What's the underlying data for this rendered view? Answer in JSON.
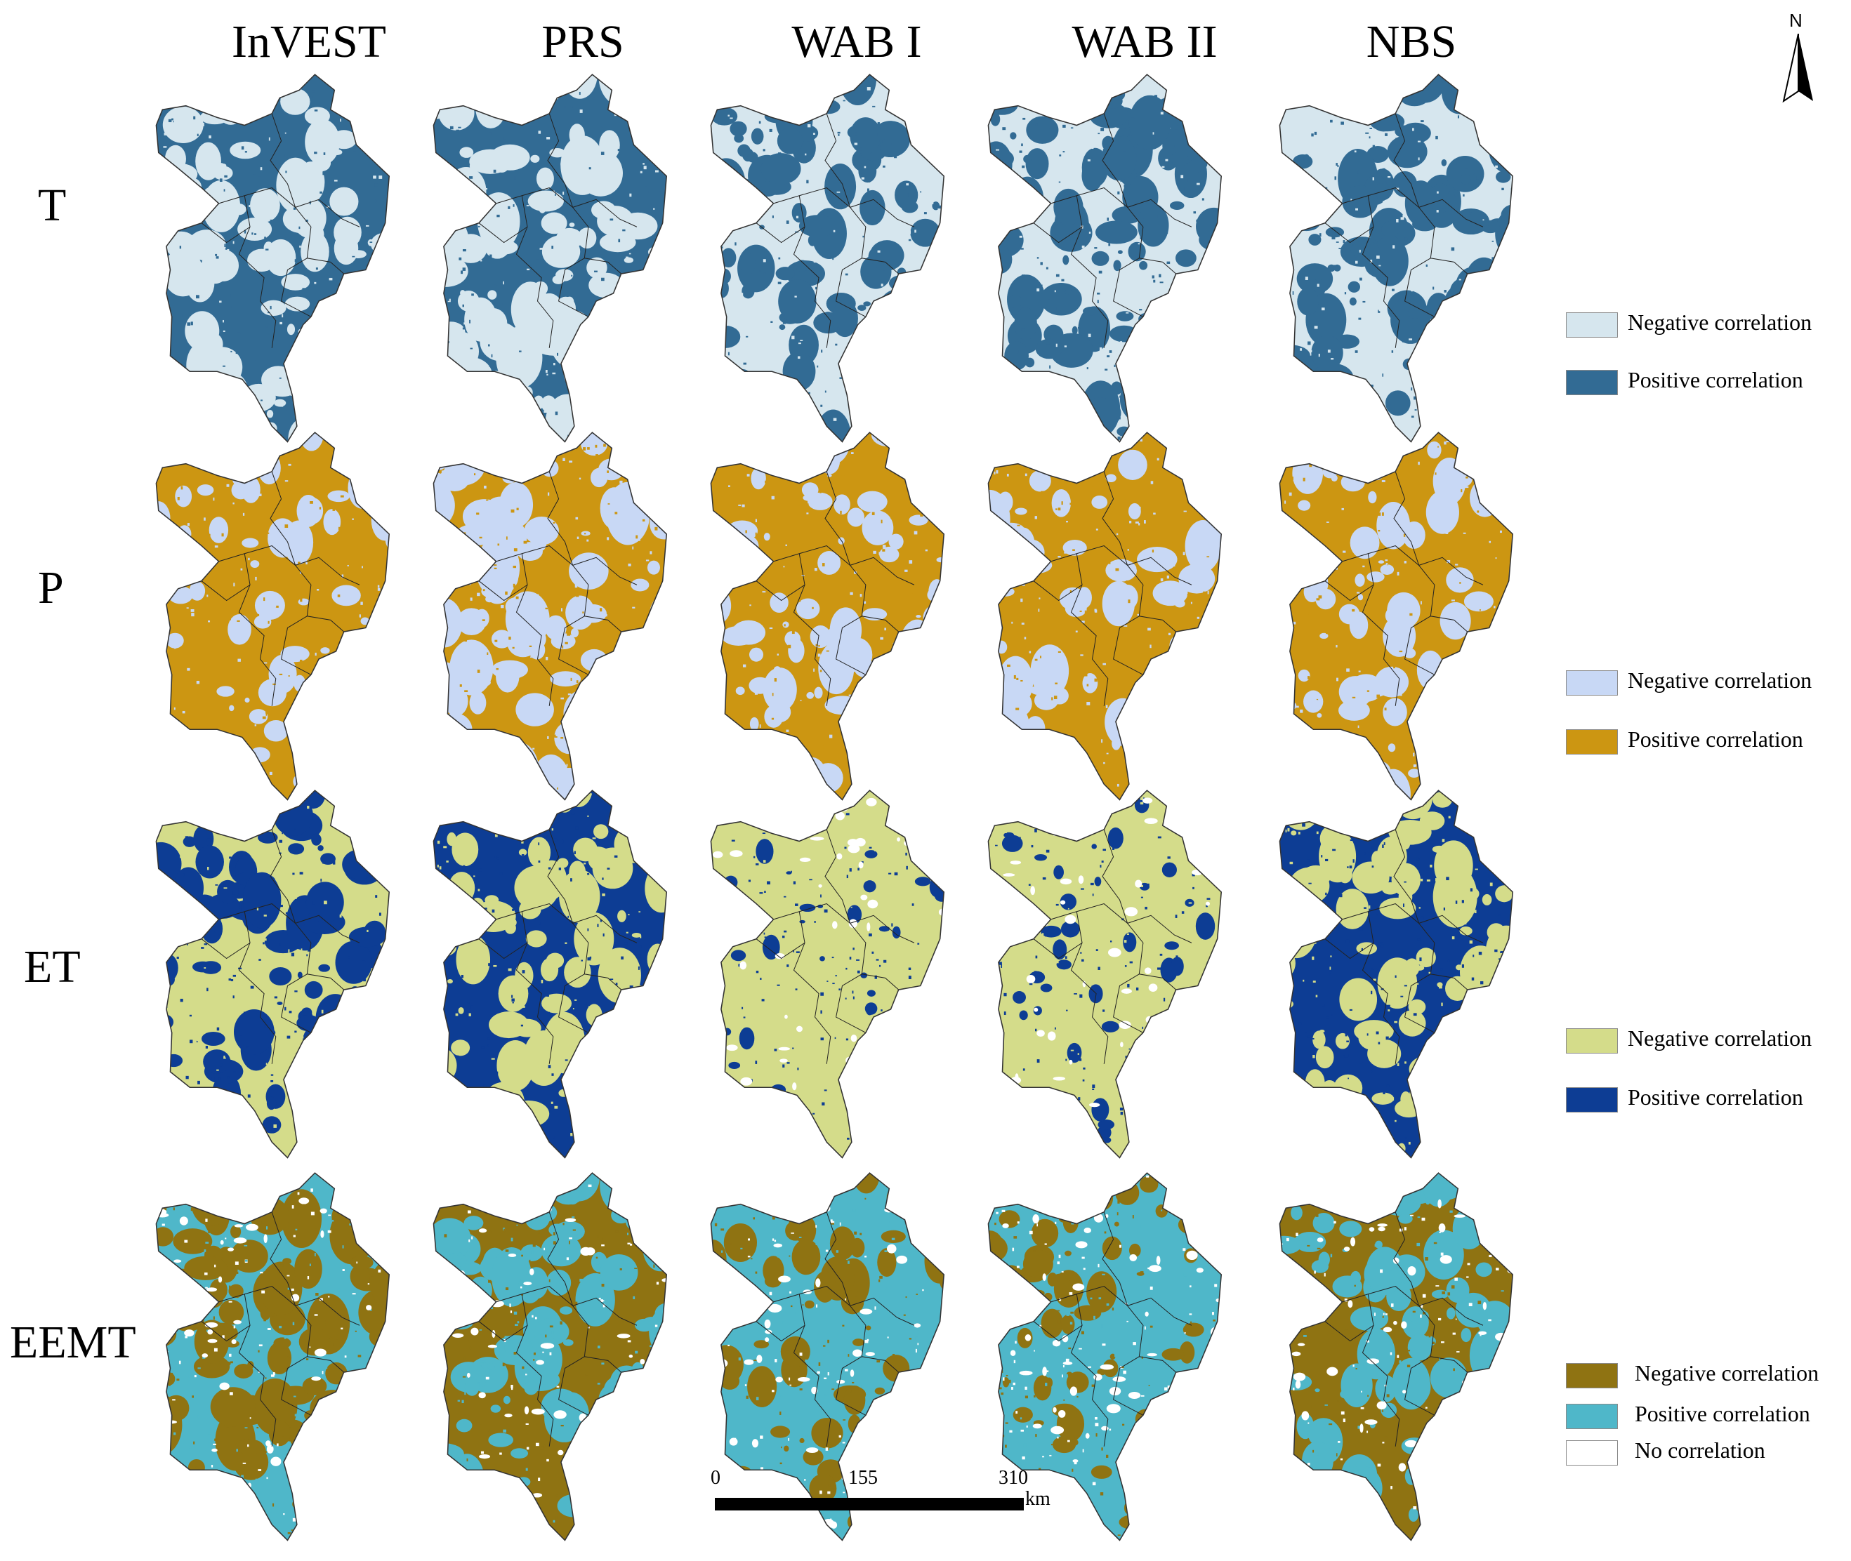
{
  "columns": [
    "InVEST",
    "PRS",
    "WAB I",
    "WAB II",
    "NBS"
  ],
  "rows": [
    {
      "label": "T",
      "colors": {
        "negative": "#d6e6ee",
        "positive": "#326b94"
      },
      "legend": [
        "Negative correlation",
        "Positive correlation"
      ],
      "positive_share": [
        0.62,
        0.52,
        0.38,
        0.44,
        0.42
      ]
    },
    {
      "label": "P",
      "colors": {
        "negative": "#c8d8f5",
        "positive": "#cc9612"
      },
      "legend": [
        "Negative correlation",
        "Positive correlation"
      ],
      "positive_share": [
        0.78,
        0.55,
        0.7,
        0.62,
        0.72
      ]
    },
    {
      "label": "ET",
      "colors": {
        "negative": "#d4dc8a",
        "positive": "#0d3d94"
      },
      "legend": [
        "Negative correlation",
        "Positive correlation"
      ],
      "positive_share": [
        0.45,
        0.55,
        0.05,
        0.06,
        0.55
      ]
    },
    {
      "label": "EEMT",
      "colors": {
        "negative": "#8f7312",
        "positive": "#4fb7c9",
        "none": "#ffffff"
      },
      "legend": [
        "Negative correlation",
        "Positive correlation",
        "No correlation"
      ],
      "positive_share": [
        0.55,
        0.42,
        0.72,
        0.78,
        0.4
      ]
    }
  ],
  "north_arrow": {
    "label": "N"
  },
  "scale_bar": {
    "labels": [
      "0",
      "155",
      "310"
    ],
    "unit": "km"
  }
}
